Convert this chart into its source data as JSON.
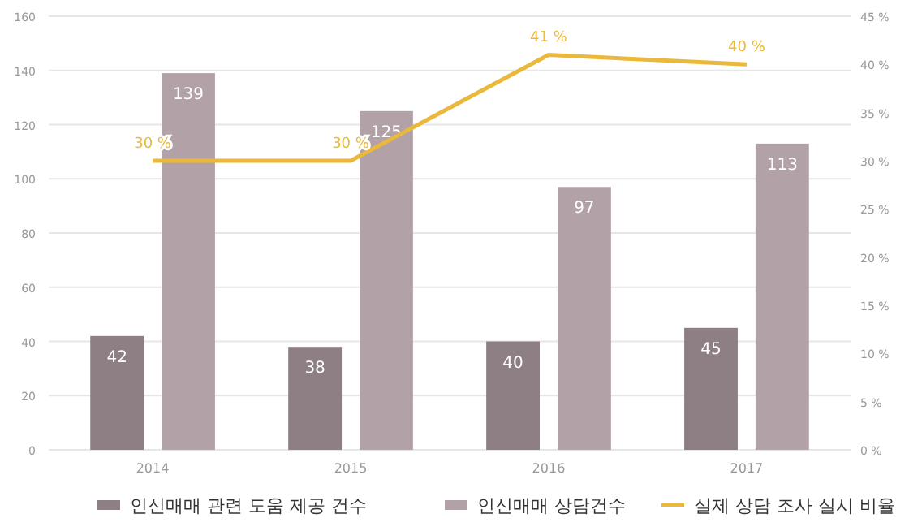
{
  "chart_data": {
    "type": "bar",
    "categories": [
      "2014",
      "2015",
      "2016",
      "2017"
    ],
    "series": [
      {
        "name": "인신매매 관련 도움 제공 건수",
        "color": "#8e7f85",
        "values": [
          42,
          38,
          40,
          45
        ]
      },
      {
        "name": "인신매매 상담건수",
        "color": "#b2a2a8",
        "values": [
          139,
          125,
          97,
          113
        ]
      },
      {
        "name": "실제 상담 조사 실시 비율",
        "type": "line",
        "axis": "y2",
        "color": "#e9b83c",
        "values": [
          30,
          30,
          41,
          40
        ],
        "value_labels": [
          "30 %",
          "30 %",
          "41 %",
          "40 %"
        ]
      }
    ],
    "ylim": [
      0,
      160
    ],
    "yticks": [
      0,
      20,
      40,
      60,
      80,
      100,
      120,
      140,
      160
    ],
    "y2lim": [
      0,
      45
    ],
    "y2ticks": [
      {
        "value": 0,
        "label": "0 %"
      },
      {
        "value": 5,
        "label": "5 %"
      },
      {
        "value": 10,
        "label": "10 %"
      },
      {
        "value": 15,
        "label": "15 %"
      },
      {
        "value": 20,
        "label": "20 %"
      },
      {
        "value": 25,
        "label": "25 %"
      },
      {
        "value": 30,
        "label": "30 %"
      },
      {
        "value": 35,
        "label": "35 %"
      },
      {
        "value": 40,
        "label": "40 %"
      },
      {
        "value": 45,
        "label": "45 %"
      }
    ],
    "data_labels": true,
    "grid": "y",
    "legend": "bottom"
  }
}
